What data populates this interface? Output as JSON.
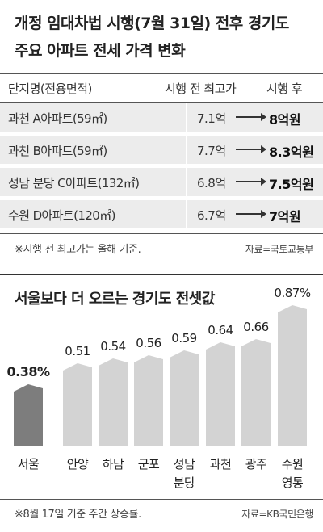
{
  "table": {
    "title_line1": "개정 임대차법 시행(7월 31일) 전후 경기도",
    "title_line2": "주요 아파트 전세 가격 변화",
    "headers": [
      "단지명(전용면적)",
      "시행 전 최고가",
      "시행 후"
    ],
    "rows": [
      {
        "name": "과천 A아파트(59㎡)",
        "before": "7.1억",
        "after": "8억원"
      },
      {
        "name": "과천 B아파트(59㎡)",
        "before": "7.7억",
        "after": "8.3억원"
      },
      {
        "name": "성남 분당 C아파트(132㎡)",
        "before": "6.8억",
        "after": "7.5억원"
      },
      {
        "name": "수원 D아파트(120㎡)",
        "before": "6.7억",
        "after": "7억원"
      }
    ],
    "note": "※시행 전 최고가는 올해 기준.",
    "source": "자료=국토교통부"
  },
  "chart": {
    "note": "※8월 17일 기준 주간 상승률.",
    "source": "자료=KB국민은행"
  },
  "colors": {
    "highlight_bar": "#7d7d7d",
    "bar": "#d3d3d3",
    "row_bg": "#ececec"
  },
  "chart_data": {
    "type": "bar",
    "title": "서울보다 더 오르는 경기도 전셋값",
    "categories": [
      [
        "서울"
      ],
      [
        "안양"
      ],
      [
        "하남"
      ],
      [
        "군포"
      ],
      [
        "성남",
        "분당"
      ],
      [
        "과천"
      ],
      [
        "광주"
      ],
      [
        "수원",
        "영통"
      ]
    ],
    "values": [
      0.38,
      0.51,
      0.54,
      0.56,
      0.59,
      0.64,
      0.66,
      0.87
    ],
    "labels": [
      "0.38%",
      "0.51",
      "0.54",
      "0.56",
      "0.59",
      "0.64",
      "0.66",
      "0.87%"
    ],
    "highlight_index": 0,
    "grid": false,
    "xlabel": "",
    "ylabel": ""
  }
}
